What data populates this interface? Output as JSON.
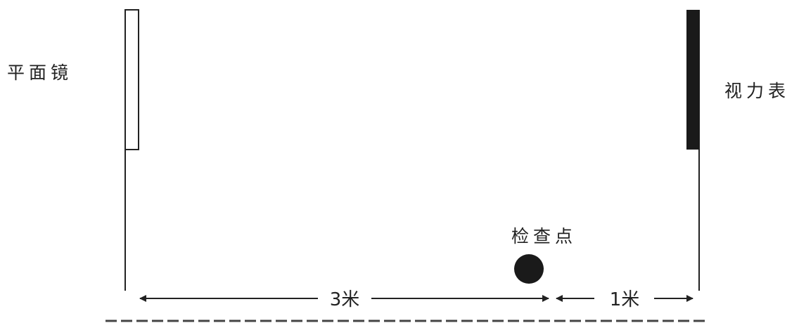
{
  "labels": {
    "mirror": "平面镜",
    "chart": "视力表",
    "checkpoint": "检查点",
    "distance_left": "3米",
    "distance_right": "1米"
  },
  "colors": {
    "line": "#222222",
    "chart_fill": "#1a1a1a",
    "mirror_fill": "#ffffff"
  }
}
